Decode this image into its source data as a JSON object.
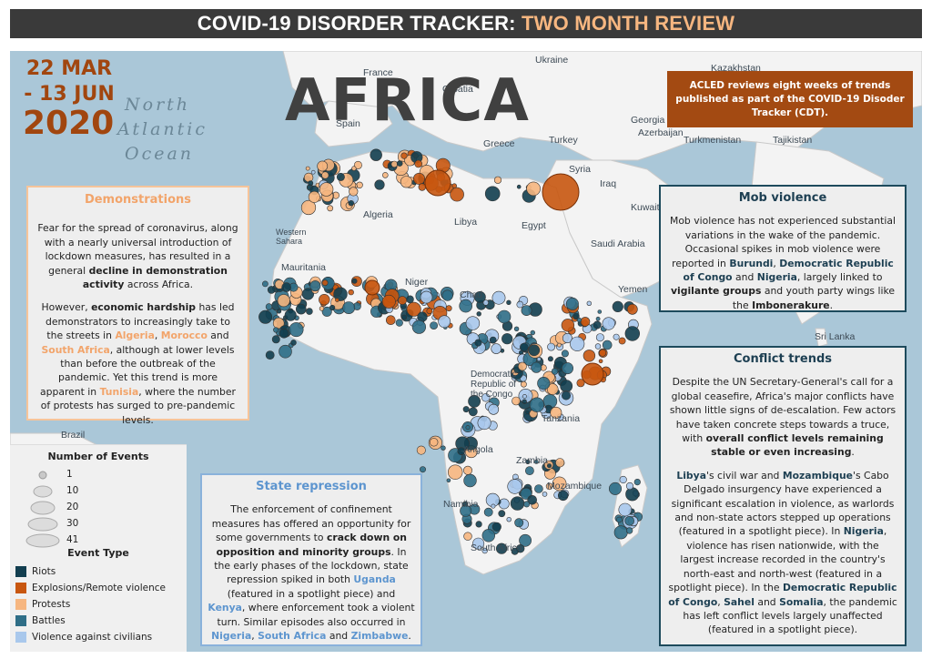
{
  "header": {
    "title_main": "COVID-19 DISORDER TRACKER: ",
    "title_accent": "TWO MONTH REVIEW"
  },
  "date": {
    "line1": "22 MAR",
    "line2": "- 13 JUN",
    "line3": "2020"
  },
  "map_title": "AFRICA",
  "ocean_label": {
    "line1": "North",
    "line2": "Atlantic",
    "line3": "Ocean"
  },
  "acled_note": "ACLED reviews eight weeks of trends published as part of the COVID-19 Disoder Tracker (CDT).",
  "geo_labels": [
    "Ukraine",
    "Kazakhstan",
    "France",
    "Croatia",
    "Spain",
    "Greece",
    "Turkey",
    "Georgia",
    "Azerbaijan",
    "Turkmenistan",
    "Tajikistan",
    "Syria",
    "Iraq",
    "Kuwait",
    "Saudi Arabia",
    "Yemen",
    "Sri Lanka",
    "Algeria",
    "Libya",
    "Egypt",
    "Western Sahara",
    "Mauritania",
    "Niger",
    "Chad",
    "Democratic Republic of the Congo",
    "Tanzania",
    "Angola",
    "Zambia",
    "Namibia",
    "Mozambique",
    "South Africa",
    "Brazil"
  ],
  "colors": {
    "riots": "#123e4f",
    "explosions": "#c8560f",
    "protests": "#f6b680",
    "battles": "#2f6e87",
    "vac": "#a9c8ec",
    "land": "#f3f3f3",
    "water": "#aac7d8"
  },
  "panels": {
    "demonstrations": {
      "title": "Demonstrations",
      "p1_a": "Fear for the spread of coronavirus, along with a nearly universal introduction of lockdown measures, has resulted in a general ",
      "p1_b": "decline in demonstration activity",
      "p1_c": " across Africa.",
      "p2_a": "However, ",
      "p2_b": "economic hardship",
      "p2_c": " has led demonstrators to increasingly take to the streets in ",
      "p2_algeria": "Algeria",
      "p2_d": ", ",
      "p2_morocco": "Morocco",
      "p2_e": " and ",
      "p2_sa": "South Africa",
      "p2_f": ", although at lower levels than before the outbreak of the pandemic. Yet this trend is more apparent in ",
      "p2_tunisia": "Tunisia",
      "p2_g": ", where the number of protests has surged to pre-pandemic levels."
    },
    "mob": {
      "title": "Mob violence",
      "p_a": "Mob violence has not experienced substantial variations in the wake of the pandemic. Occasional spikes in mob violence were reported in ",
      "p_burundi": "Burundi",
      "p_b": ", ",
      "p_drc": "Democratic Republic of Congo",
      "p_c": " and ",
      "p_nigeria": "Nigeria",
      "p_d": ", largely linked to ",
      "p_vig": "vigilante groups",
      "p_e": " and youth party wings like the ",
      "p_imb": "Imbonerakure",
      "p_f": "."
    },
    "conflict": {
      "title": "Conflict trends",
      "p1_a": "Despite the UN Secretary-General's call for a global ceasefire, Africa's major conflicts have shown little signs of de-escalation. Few actors have taken concrete steps towards a truce, with ",
      "p1_b": "overall conflict levels remaining stable or even increasing",
      "p1_c": ".",
      "p2_libya": "Libya",
      "p2_a": "'s civil war and ",
      "p2_moz": "Mozambique",
      "p2_b": "'s Cabo Delgado insurgency have experienced a significant escalation in violence, as warlords and non-state actors stepped up operations (featured in a spotlight piece). In ",
      "p2_nigeria": "Nigeria",
      "p2_c": ", violence has risen nationwide, with the largest increase recorded in the country's north-east and north-west  (featured in a spotlight piece). In the ",
      "p2_drc": "Democratic Republic of Congo",
      "p2_d": ", ",
      "p2_sahel": "Sahel",
      "p2_e": " and ",
      "p2_somalia": "Somalia",
      "p2_f": ", the pandemic has left conflict levels largely unaffected (featured in a spotlight piece)."
    },
    "state": {
      "title": "State repression",
      "p_a": "The enforcement of confinement measures has offered an opportunity for some governments to ",
      "p_b": "crack down on opposition and minority groups",
      "p_c": ". In the early phases of the lockdown, state repression spiked in both ",
      "p_uganda": "Uganda",
      "p_d": " (featured in a spotlight piece) and ",
      "p_kenya": "Kenya",
      "p_e": ", where enforcement took a violent turn. Similar episodes also occurred in ",
      "p_nigeria": "Nigeria",
      "p_f": ", ",
      "p_sa": "South Africa",
      "p_g": " and ",
      "p_zim": "Zimbabwe",
      "p_h": "."
    }
  },
  "legend": {
    "size_title": "Number of Events",
    "sizes": [
      "1",
      "10",
      "20",
      "30",
      "41"
    ],
    "type_title": "Event Type",
    "types": [
      "Riots",
      "Explosions/Remote violence",
      "Protests",
      "Battles",
      "Violence against civilians"
    ]
  }
}
